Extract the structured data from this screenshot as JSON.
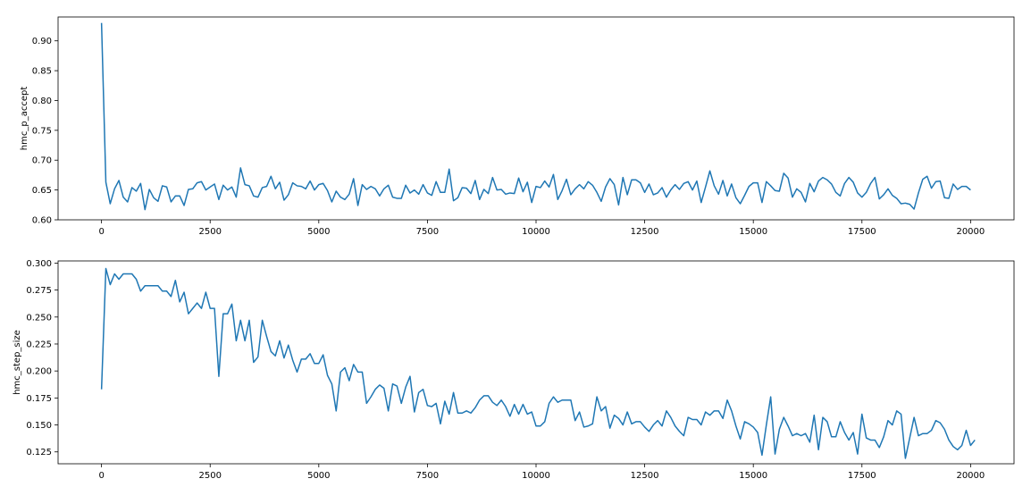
{
  "chart_data": [
    {
      "type": "line",
      "ylabel": "hmc_p_accept",
      "xlabel": "",
      "xlim": [
        -1000,
        21000
      ],
      "ylim": [
        0.6,
        0.94
      ],
      "xticks": [
        0,
        2500,
        5000,
        7500,
        10000,
        12500,
        15000,
        17500,
        20000
      ],
      "yticks": [
        0.6,
        0.65,
        0.7,
        0.75,
        0.8,
        0.85,
        0.9
      ],
      "ytick_labels": [
        "0.60",
        "0.65",
        "0.70",
        "0.75",
        "0.80",
        "0.85",
        "0.90"
      ],
      "line_color": "#1f77b4",
      "grid": false,
      "series": [
        {
          "x_step": 100,
          "x_start": 0,
          "values": [
            0.93,
            0.663,
            0.627,
            0.652,
            0.666,
            0.638,
            0.63,
            0.654,
            0.648,
            0.661,
            0.617,
            0.651,
            0.637,
            0.631,
            0.657,
            0.655,
            0.63,
            0.64,
            0.64,
            0.624,
            0.651,
            0.652,
            0.662,
            0.664,
            0.65,
            0.655,
            0.66,
            0.634,
            0.658,
            0.65,
            0.655,
            0.638,
            0.687,
            0.659,
            0.657,
            0.64,
            0.638,
            0.654,
            0.656,
            0.673,
            0.652,
            0.663,
            0.633,
            0.642,
            0.662,
            0.657,
            0.656,
            0.652,
            0.665,
            0.65,
            0.659,
            0.661,
            0.649,
            0.63,
            0.648,
            0.638,
            0.634,
            0.643,
            0.669,
            0.624,
            0.659,
            0.651,
            0.656,
            0.652,
            0.64,
            0.652,
            0.658,
            0.638,
            0.636,
            0.636,
            0.658,
            0.645,
            0.65,
            0.643,
            0.659,
            0.645,
            0.641,
            0.664,
            0.646,
            0.646,
            0.685,
            0.632,
            0.637,
            0.654,
            0.653,
            0.644,
            0.666,
            0.634,
            0.651,
            0.644,
            0.671,
            0.65,
            0.651,
            0.643,
            0.645,
            0.644,
            0.67,
            0.647,
            0.663,
            0.629,
            0.656,
            0.654,
            0.665,
            0.655,
            0.676,
            0.634,
            0.649,
            0.668,
            0.642,
            0.652,
            0.659,
            0.652,
            0.664,
            0.658,
            0.646,
            0.631,
            0.655,
            0.669,
            0.659,
            0.625,
            0.671,
            0.642,
            0.667,
            0.667,
            0.662,
            0.646,
            0.66,
            0.642,
            0.645,
            0.654,
            0.638,
            0.65,
            0.659,
            0.651,
            0.661,
            0.664,
            0.65,
            0.665,
            0.629,
            0.655,
            0.682,
            0.657,
            0.643,
            0.666,
            0.64,
            0.66,
            0.637,
            0.627,
            0.641,
            0.656,
            0.662,
            0.662,
            0.629,
            0.664,
            0.657,
            0.649,
            0.648,
            0.678,
            0.67,
            0.638,
            0.652,
            0.646,
            0.63,
            0.661,
            0.647,
            0.665,
            0.671,
            0.667,
            0.66,
            0.646,
            0.64,
            0.661,
            0.671,
            0.663,
            0.645,
            0.638,
            0.646,
            0.661,
            0.671,
            0.635,
            0.642,
            0.652,
            0.641,
            0.636,
            0.627,
            0.628,
            0.626,
            0.618,
            0.645,
            0.668,
            0.673,
            0.653,
            0.664,
            0.665,
            0.637,
            0.636,
            0.66,
            0.651,
            0.656,
            0.656,
            0.65
          ]
        }
      ]
    },
    {
      "type": "line",
      "ylabel": "hmc_step_size",
      "xlabel": "",
      "xlim": [
        -1000,
        21000
      ],
      "ylim": [
        0.114,
        0.302
      ],
      "xticks": [
        0,
        2500,
        5000,
        7500,
        10000,
        12500,
        15000,
        17500,
        20000
      ],
      "yticks": [
        0.125,
        0.15,
        0.175,
        0.2,
        0.225,
        0.25,
        0.275,
        0.3
      ],
      "ytick_labels": [
        "0.125",
        "0.150",
        "0.175",
        "0.200",
        "0.225",
        "0.250",
        "0.275",
        "0.300"
      ],
      "line_color": "#1f77b4",
      "grid": false,
      "series": [
        {
          "x_step": 100,
          "x_start": 0,
          "values": [
            0.183,
            0.295,
            0.28,
            0.29,
            0.285,
            0.29,
            0.29,
            0.29,
            0.285,
            0.274,
            0.279,
            0.279,
            0.279,
            0.279,
            0.274,
            0.274,
            0.269,
            0.284,
            0.264,
            0.273,
            0.253,
            0.258,
            0.263,
            0.258,
            0.273,
            0.258,
            0.258,
            0.195,
            0.253,
            0.253,
            0.262,
            0.228,
            0.247,
            0.228,
            0.247,
            0.208,
            0.213,
            0.247,
            0.232,
            0.218,
            0.214,
            0.228,
            0.212,
            0.224,
            0.21,
            0.199,
            0.211,
            0.211,
            0.216,
            0.207,
            0.207,
            0.215,
            0.196,
            0.188,
            0.163,
            0.199,
            0.203,
            0.191,
            0.206,
            0.199,
            0.199,
            0.17,
            0.176,
            0.183,
            0.187,
            0.184,
            0.163,
            0.188,
            0.186,
            0.17,
            0.185,
            0.195,
            0.162,
            0.18,
            0.183,
            0.168,
            0.167,
            0.17,
            0.151,
            0.172,
            0.16,
            0.18,
            0.161,
            0.161,
            0.163,
            0.161,
            0.166,
            0.173,
            0.177,
            0.177,
            0.171,
            0.168,
            0.173,
            0.167,
            0.158,
            0.169,
            0.16,
            0.169,
            0.16,
            0.162,
            0.149,
            0.149,
            0.153,
            0.17,
            0.176,
            0.171,
            0.173,
            0.173,
            0.173,
            0.154,
            0.162,
            0.148,
            0.149,
            0.151,
            0.176,
            0.163,
            0.167,
            0.147,
            0.159,
            0.156,
            0.15,
            0.162,
            0.151,
            0.153,
            0.153,
            0.148,
            0.144,
            0.15,
            0.154,
            0.149,
            0.163,
            0.157,
            0.149,
            0.144,
            0.14,
            0.157,
            0.155,
            0.155,
            0.15,
            0.162,
            0.159,
            0.163,
            0.163,
            0.156,
            0.173,
            0.163,
            0.149,
            0.137,
            0.153,
            0.151,
            0.148,
            0.143,
            0.122,
            0.15,
            0.176,
            0.123,
            0.146,
            0.157,
            0.149,
            0.14,
            0.142,
            0.14,
            0.142,
            0.134,
            0.159,
            0.127,
            0.157,
            0.153,
            0.139,
            0.139,
            0.153,
            0.143,
            0.136,
            0.143,
            0.123,
            0.16,
            0.138,
            0.136,
            0.136,
            0.129,
            0.139,
            0.154,
            0.15,
            0.163,
            0.16,
            0.119,
            0.138,
            0.157,
            0.14,
            0.142,
            0.142,
            0.145,
            0.154,
            0.152,
            0.146,
            0.136,
            0.13,
            0.127,
            0.131,
            0.145,
            0.131,
            0.136
          ]
        }
      ]
    }
  ]
}
